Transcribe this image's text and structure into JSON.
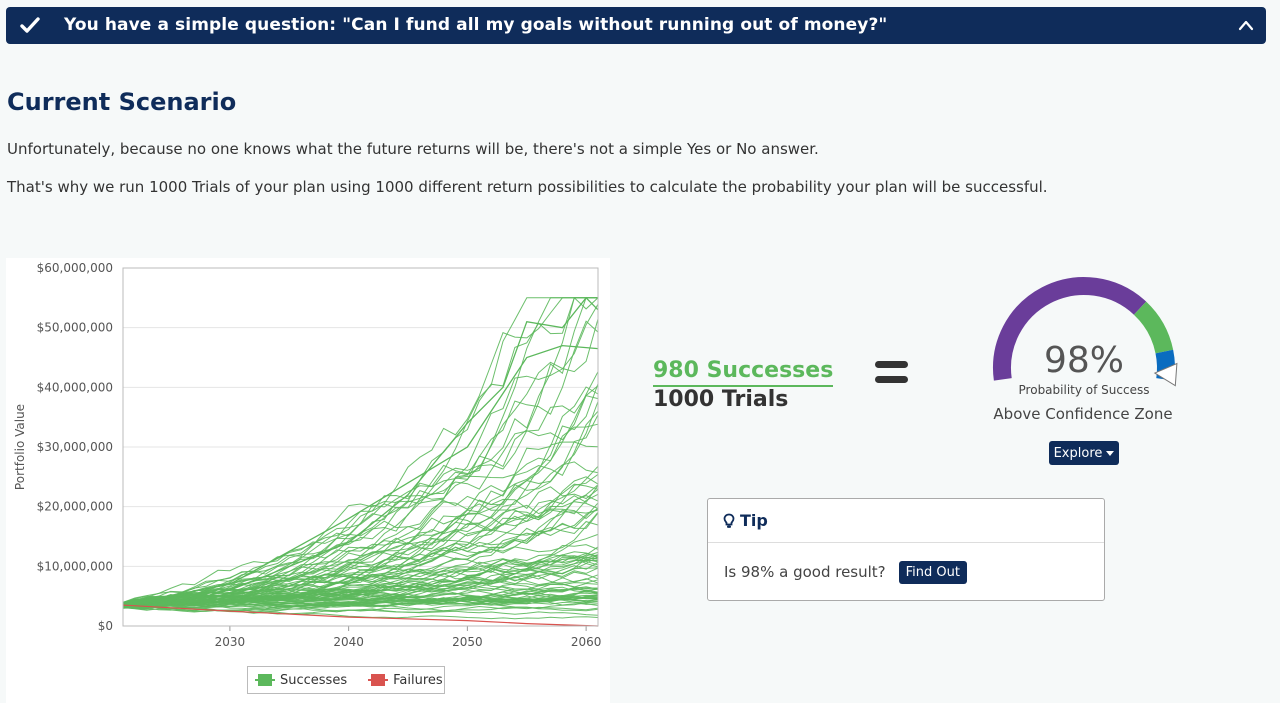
{
  "banner": {
    "title": "You have a simple question: \"Can I fund all my goals without running out of money?\""
  },
  "scenario": {
    "heading": "Current Scenario",
    "para1": "Unfortunately, because no one knows what the future returns will be, there's not a simple Yes or No answer.",
    "para2": "That's why we run 1000 Trials of your plan using 1000 different return possibilities to calculate the probability your plan will be successful."
  },
  "result": {
    "successes": "980 Successes",
    "trials": "1000 Trials",
    "percent": "98%",
    "probability_label": "Probability of Success",
    "zone_label": "Above Confidence Zone",
    "explore_label": "Explore",
    "gauge": {
      "value": 0.98,
      "colors": {
        "purple": "#6a3d9a",
        "green": "#5cb85c",
        "blue": "#0a6cc0",
        "marker": "#ffffff"
      }
    }
  },
  "tip": {
    "title": "Tip",
    "question": "Is 98% a good result?",
    "button": "Find Out"
  },
  "chart_data": {
    "type": "line",
    "ylabel": "Portfolio Value",
    "xlabel": "",
    "ylim": [
      0,
      60000000
    ],
    "xlim": [
      2021,
      2061
    ],
    "y_ticks": [
      "$0",
      "$10,000,000",
      "$20,000,000",
      "$30,000,000",
      "$40,000,000",
      "$50,000,000",
      "$60,000,000"
    ],
    "x_ticks": [
      "2030",
      "2040",
      "2050",
      "2060"
    ],
    "legend": [
      {
        "name": "Successes",
        "color": "#5cb85c"
      },
      {
        "name": "Failures",
        "color": "#d9534f"
      }
    ],
    "start_value": 3500000,
    "highlight_series": [
      {
        "name": "",
        "x": [
          2021,
          2030,
          2040,
          2045,
          2050,
          2053,
          2055,
          2058,
          2060,
          2061
        ],
        "values": [
          3500000,
          6000000,
          14000000,
          22000000,
          34000000,
          40000000,
          51000000,
          50000000,
          55000000,
          53000000
        ]
      },
      {
        "name": "",
        "x": [
          2021,
          2030,
          2040,
          2050,
          2055,
          2058,
          2061
        ],
        "values": [
          3500000,
          7000000,
          18000000,
          30000000,
          45000000,
          47000000,
          46500000
        ]
      }
    ],
    "failure_series": [
      {
        "name": "",
        "x": [
          2021,
          2030,
          2040,
          2050,
          2055,
          2061
        ],
        "values": [
          3500000,
          2500000,
          1500000,
          900000,
          400000,
          0
        ]
      }
    ]
  },
  "icons": {
    "check": "check-icon",
    "chevron": "chevron-up-icon",
    "tip": "lightbulb-icon"
  }
}
